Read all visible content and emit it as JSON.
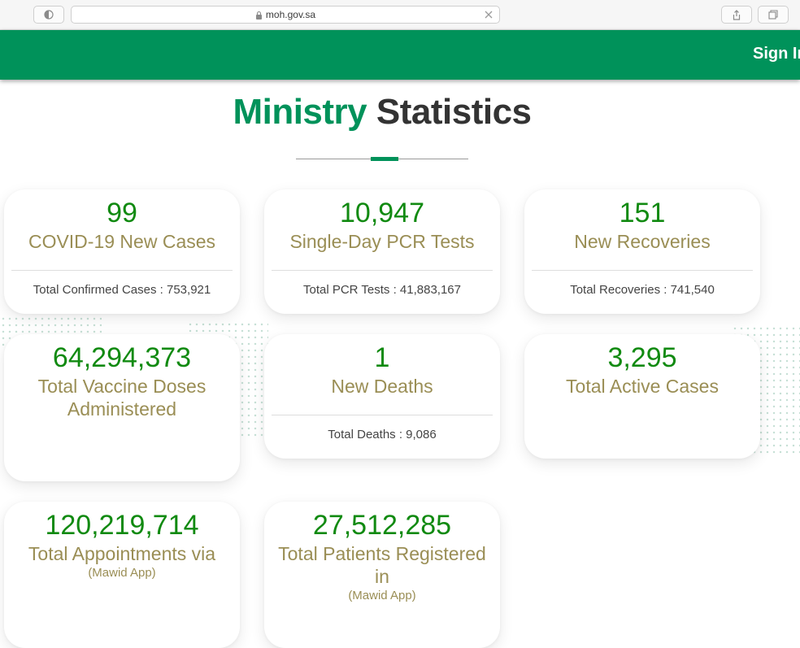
{
  "browser": {
    "url": "moh.gov.sa"
  },
  "header": {
    "sign_in": "Sign In"
  },
  "page": {
    "title_highlight": "Ministry",
    "title_rest": "Statistics"
  },
  "cards": [
    {
      "value": "99",
      "label": "COVID-19 New Cases",
      "footer": "Total Confirmed Cases : 753,921"
    },
    {
      "value": "10,947",
      "label": "Single-Day PCR Tests",
      "footer": "Total PCR Tests : 41,883,167"
    },
    {
      "value": "151",
      "label": "New Recoveries",
      "footer": "Total Recoveries : 741,540"
    },
    {
      "value": "64,294,373",
      "label": "Total Vaccine Doses Administered"
    },
    {
      "value": "1",
      "label": "New Deaths",
      "footer": "Total Deaths : 9,086"
    },
    {
      "value": "3,295",
      "label": "Total Active Cases"
    },
    {
      "value": "120,219,714",
      "label": "Total Appointments via",
      "sublabel": "(Mawid App)"
    },
    {
      "value": "27,512,285",
      "label": "Total Patients Registered in",
      "sublabel": "(Mawid App)"
    }
  ],
  "colors": {
    "brand_green": "#00925a",
    "value_green": "#118a11",
    "label_olive": "#9a8e55"
  }
}
